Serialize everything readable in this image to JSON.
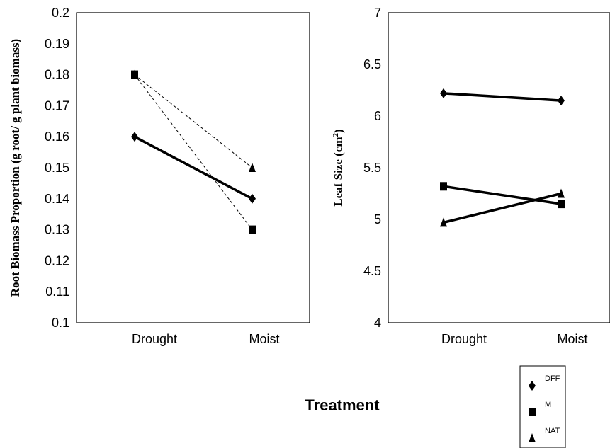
{
  "x_title": "Treatment",
  "chart_data": [
    {
      "type": "line",
      "ylabel": "Root Biomass Proportion (g root/ g plant biomass)",
      "categories": [
        "Drought",
        "Moist"
      ],
      "ylim": [
        0.1,
        0.2
      ],
      "yticks": [
        "0.1",
        "0.11",
        "0.12",
        "0.13",
        "0.14",
        "0.15",
        "0.16",
        "0.17",
        "0.18",
        "0.19",
        "0.2"
      ],
      "series": [
        {
          "name": "DFF",
          "marker": "diamond",
          "style": "thick",
          "values": [
            0.16,
            0.14
          ]
        },
        {
          "name": "M",
          "marker": "square",
          "style": "dashed",
          "values": [
            0.18,
            0.13
          ]
        },
        {
          "name": "NAT",
          "marker": "triangle",
          "style": "dashed",
          "values": [
            0.18,
            0.15
          ]
        }
      ]
    },
    {
      "type": "line",
      "ylabel_main": "Leaf Size (cm",
      "ylabel_sup": "2",
      "ylabel_end": ")",
      "categories": [
        "Drought",
        "Moist"
      ],
      "ylim": [
        4,
        7
      ],
      "yticks": [
        "4",
        "4.5",
        "5",
        "5.5",
        "6",
        "6.5",
        "7"
      ],
      "series": [
        {
          "name": "DFF",
          "marker": "diamond",
          "style": "thick",
          "values": [
            6.22,
            6.15
          ]
        },
        {
          "name": "M",
          "marker": "square",
          "style": "thick",
          "values": [
            5.32,
            5.15
          ]
        },
        {
          "name": "NAT",
          "marker": "triangle",
          "style": "thick",
          "values": [
            4.97,
            5.25
          ]
        }
      ]
    }
  ],
  "legend": [
    "DFF",
    "M",
    "NAT"
  ]
}
